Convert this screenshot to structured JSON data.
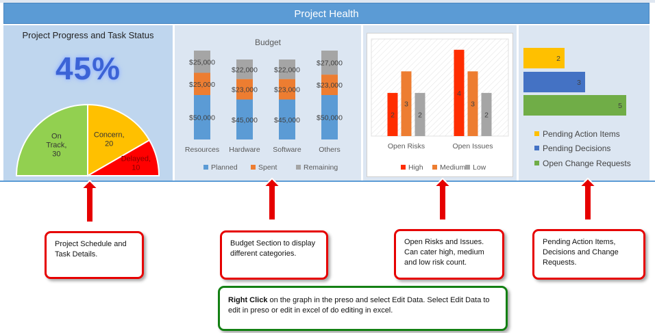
{
  "header": {
    "title": "Project Health"
  },
  "progress": {
    "title": "Project Progress and Task Status",
    "percent_label": "45%",
    "pie": [
      {
        "label_lines": [
          "On",
          "Track,",
          "30"
        ],
        "value": 30,
        "color": "#92d050"
      },
      {
        "label_lines": [
          "Concern,",
          "20"
        ],
        "value": 20,
        "color": "#ffc000"
      },
      {
        "label_lines": [
          "Delayed,",
          "10"
        ],
        "value": 10,
        "color": "#ff0000"
      }
    ]
  },
  "chart_data": [
    {
      "type": "bar",
      "stacked": true,
      "title": "Budget",
      "categories": [
        "Resources",
        "Hardware",
        "Software",
        "Others"
      ],
      "series": [
        {
          "name": "Planned",
          "values": [
            50000,
            45000,
            45000,
            50000
          ],
          "labels": [
            "$50,000",
            "$45,000",
            "$45,000",
            "$50,000"
          ],
          "color": "#5b9bd5"
        },
        {
          "name": "Spent",
          "values": [
            25000,
            23000,
            23000,
            23000
          ],
          "labels": [
            "$25,000",
            "$23,000",
            "$23,000",
            "$23,000"
          ],
          "color": "#ed7d31"
        },
        {
          "name": "Remaining",
          "values": [
            25000,
            22000,
            22000,
            27000
          ],
          "labels": [
            "$25,000",
            "$22,000",
            "$22,000",
            "$27,000"
          ],
          "color": "#a5a5a5"
        }
      ],
      "ylim": [
        0,
        100000
      ],
      "legend": "bottom"
    },
    {
      "type": "bar",
      "categories": [
        "Open Risks",
        "Open Issues"
      ],
      "series": [
        {
          "name": "High",
          "values": [
            2,
            4
          ],
          "color": "#ff2d00"
        },
        {
          "name": "Medium",
          "values": [
            3,
            3
          ],
          "color": "#ed7d31"
        },
        {
          "name": "Low",
          "values": [
            2,
            2
          ],
          "color": "#a5a5a5"
        }
      ],
      "ylim": [
        0,
        4.5
      ],
      "legend": "bottom"
    },
    {
      "type": "bar",
      "orientation": "horizontal",
      "categories": [
        "Pending Action Items",
        "Pending Decisions",
        "Open Change Requests"
      ],
      "values": [
        2,
        3,
        5
      ],
      "colors": [
        "#ffc000",
        "#4472c4",
        "#70ad47"
      ],
      "xlim": [
        0,
        5
      ],
      "legend": "bottom"
    }
  ],
  "callouts": {
    "schedule": "Project Schedule and Task Details.",
    "budget": "Budget Section to display different categories.",
    "risks": "Open Risks and Issues. Can cater high, medium and low risk count.",
    "pending": "Pending Action Items, Decisions and Change Requests.",
    "edit_bold": "Right Click",
    "edit_rest": " on the graph in the preso and select Edit Data. Select Edit Data to edit in preso or edit in excel of do editing in excel."
  }
}
